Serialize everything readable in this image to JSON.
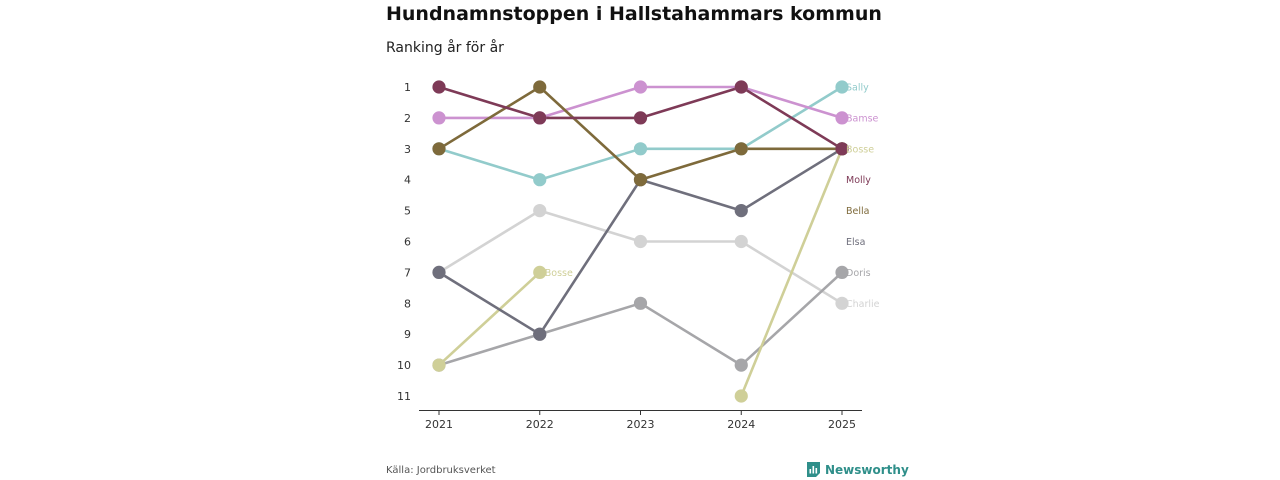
{
  "title": "Hundnamnstoppen i Hallstahammars kommun",
  "subtitle": "Ranking år för år",
  "source": "Källa: Jordbruksverket",
  "brand": "Newsworthy",
  "brand_color": "#2f8f8a",
  "chart_data": {
    "type": "line",
    "title": "Hundnamnstoppen i Hallstahammars kommun",
    "subtitle": "Ranking år för år",
    "xlabel": "",
    "ylabel": "",
    "x": [
      "2021",
      "2022",
      "2023",
      "2024",
      "2025"
    ],
    "ylim": [
      11,
      1
    ],
    "yticks": [
      "1",
      "2",
      "3",
      "4",
      "5",
      "6",
      "7",
      "8",
      "9",
      "10",
      "11"
    ],
    "series": [
      {
        "name": "Charlie",
        "color": "#d3d3d3",
        "values": [
          7,
          5,
          6,
          6,
          8
        ]
      },
      {
        "name": "Doris",
        "color": "#a6a6a9",
        "values": [
          10,
          9,
          8,
          10,
          7
        ]
      },
      {
        "name": "Bosse",
        "color": "#cfcf98",
        "values": [
          10,
          7,
          null,
          11,
          3
        ]
      },
      {
        "name": "Elsa",
        "color": "#6f6f7c",
        "values": [
          7,
          9,
          4,
          5,
          3
        ]
      },
      {
        "name": "Sally",
        "color": "#92cbcb",
        "values": [
          3,
          4,
          3,
          3,
          1
        ]
      },
      {
        "name": "Bamse",
        "color": "#cc92d0",
        "values": [
          2,
          2,
          1,
          1,
          2
        ]
      },
      {
        "name": "Bella",
        "color": "#7e6a3b",
        "values": [
          3,
          1,
          4,
          3,
          3
        ]
      },
      {
        "name": "Molly",
        "color": "#7e3a57",
        "values": [
          1,
          2,
          2,
          1,
          3
        ]
      }
    ],
    "end_labels": [
      {
        "name": "Sally",
        "rank": 1
      },
      {
        "name": "Bamse",
        "rank": 2
      },
      {
        "name": "Bosse",
        "rank": 3
      },
      {
        "name": "Molly",
        "rank": 4
      },
      {
        "name": "Bella",
        "rank": 5
      },
      {
        "name": "Elsa",
        "rank": 6
      },
      {
        "name": "Doris",
        "rank": 7
      },
      {
        "name": "Charlie",
        "rank": 8
      }
    ],
    "inline_labels": [
      {
        "name": "Bosse",
        "year": "2022",
        "rank": 7
      }
    ]
  }
}
